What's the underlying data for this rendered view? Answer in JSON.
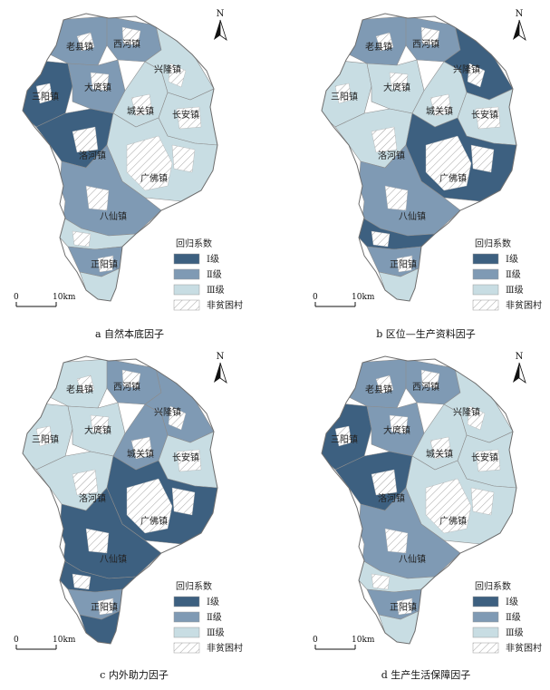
{
  "colors": {
    "level1": "#3d6080",
    "level2": "#7f9ab4",
    "level3": "#c8dde3",
    "hatch": "#9a9a9a",
    "border": "#8c8c8c"
  },
  "legend": {
    "title": "回归系数",
    "items": [
      "Ⅰ级",
      "Ⅱ级",
      "Ⅲ级",
      "非贫困村"
    ]
  },
  "scale": {
    "zero": "0",
    "distance": "10km"
  },
  "north": "N",
  "towns": [
    "老县镇",
    "西河镇",
    "兴隆镇",
    "三阳镇",
    "大庹镇",
    "城关镇",
    "长安镇",
    "洛河镇",
    "广佛镇",
    "八仙镇",
    "正阳镇"
  ],
  "panels": [
    {
      "caption": "a  自然本底因子",
      "fills": [
        "level2",
        "level2",
        "level3",
        "level1",
        "level2",
        "level3",
        "level3",
        "level1",
        "level3",
        "level2",
        "level3",
        "level2",
        "level3"
      ]
    },
    {
      "caption": "b  区位—生产资料因子",
      "fills": [
        "level2",
        "level2",
        "level1",
        "level3",
        "level3",
        "level3",
        "level3",
        "level3",
        "level1",
        "level2",
        "level1",
        "level2",
        "level3"
      ]
    },
    {
      "caption": "c  内外助力因子",
      "fills": [
        "level3",
        "level2",
        "level2",
        "level3",
        "level3",
        "level2",
        "level3",
        "level3",
        "level1",
        "level1",
        "level1",
        "level2",
        "level1"
      ]
    },
    {
      "caption": "d  生产生活保障因子",
      "fills": [
        "level2",
        "level2",
        "level3",
        "level1",
        "level2",
        "level3",
        "level3",
        "level1",
        "level3",
        "level2",
        "level3",
        "level2",
        "level3"
      ]
    }
  ]
}
